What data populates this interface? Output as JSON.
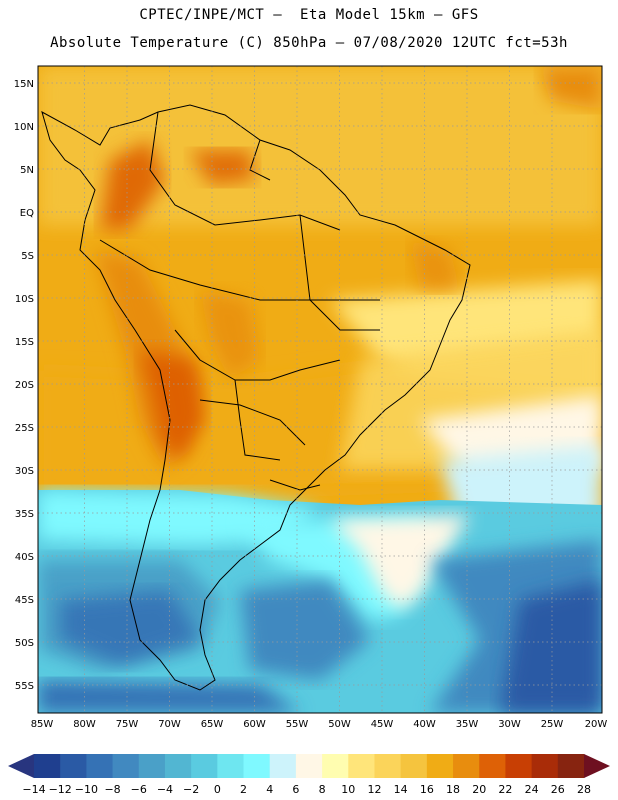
{
  "header": {
    "line1": "CPTEC/INPE/MCT –  Eta Model 15km – GFS",
    "line2": "Absolute Temperature (C) 850hPa – 07/08/2020 12UTC fct=53h"
  },
  "map": {
    "lat_labels": [
      "15N",
      "10N",
      "5N",
      "EQ",
      "5S",
      "10S",
      "15S",
      "20S",
      "25S",
      "30S",
      "35S",
      "40S",
      "45S",
      "50S",
      "55S"
    ],
    "lon_labels": [
      "85W",
      "80W",
      "75W",
      "70W",
      "65W",
      "60W",
      "55W",
      "50W",
      "45W",
      "40W",
      "35W",
      "30W",
      "25W",
      "20W"
    ],
    "grid_lines": "dotted"
  },
  "colorbar": {
    "tick_labels": [
      "-14",
      "-12",
      "-10",
      "-8",
      "-6",
      "-4",
      "-2",
      "0",
      "2",
      "4",
      "6",
      "8",
      "10",
      "12",
      "14",
      "16",
      "18",
      "20",
      "22",
      "24",
      "26",
      "28"
    ],
    "colors": [
      "#1f3f8f",
      "#2a5aa5",
      "#3572b5",
      "#4189c0",
      "#4aa0c8",
      "#52b6d2",
      "#5acbe0",
      "#6ee6f0",
      "#7ff9ff",
      "#cdf3fb",
      "#fff7e6",
      "#fffdb0",
      "#ffe57a",
      "#fbd45a",
      "#f5c43e",
      "#f0ac15",
      "#e88d0e",
      "#de6106",
      "#c83f04",
      "#a92c08",
      "#872410"
    ],
    "end_colors": {
      "low": "#28357f",
      "high": "#6e1020"
    }
  }
}
